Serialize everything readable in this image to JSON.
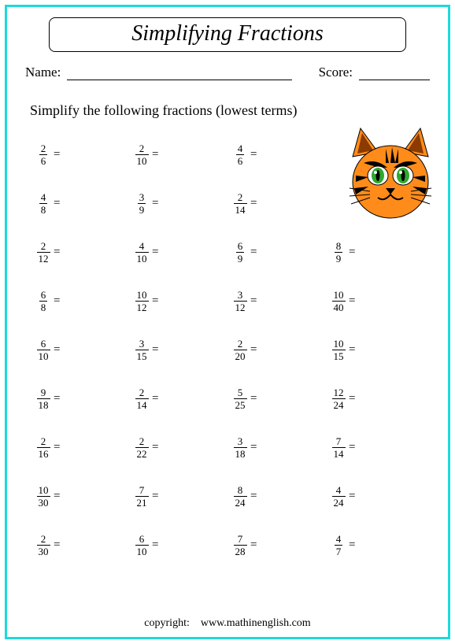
{
  "title": "Simplifying Fractions",
  "labels": {
    "name": "Name:",
    "score": "Score:"
  },
  "instructions": "Simplify the following fractions (lowest terms)",
  "equals": "=",
  "copyright_label": "copyright:",
  "copyright_site": "www.mathinenglish.com",
  "problems": [
    [
      [
        2,
        6
      ],
      [
        2,
        10
      ],
      [
        4,
        6
      ],
      null
    ],
    [
      [
        4,
        8
      ],
      [
        3,
        9
      ],
      [
        2,
        14
      ],
      null
    ],
    [
      [
        2,
        12
      ],
      [
        4,
        10
      ],
      [
        6,
        9
      ],
      [
        8,
        9
      ]
    ],
    [
      [
        6,
        8
      ],
      [
        10,
        12
      ],
      [
        3,
        12
      ],
      [
        10,
        40
      ]
    ],
    [
      [
        6,
        10
      ],
      [
        3,
        15
      ],
      [
        2,
        20
      ],
      [
        10,
        15
      ]
    ],
    [
      [
        9,
        18
      ],
      [
        2,
        14
      ],
      [
        5,
        25
      ],
      [
        12,
        24
      ]
    ],
    [
      [
        2,
        16
      ],
      [
        2,
        22
      ],
      [
        3,
        18
      ],
      [
        7,
        14
      ]
    ],
    [
      [
        10,
        30
      ],
      [
        7,
        21
      ],
      [
        8,
        24
      ],
      [
        4,
        24
      ]
    ],
    [
      [
        2,
        30
      ],
      [
        6,
        10
      ],
      [
        7,
        28
      ],
      [
        4,
        7
      ]
    ]
  ],
  "colors": {
    "outer_border": "#1fd9d9",
    "text": "#000000",
    "cat_body": "#ff8c1a",
    "cat_stripes": "#000000",
    "cat_eye_outer": "#ffffff",
    "cat_eye_iris": "#2fa82f",
    "cat_eye_pupil": "#000000",
    "cat_nose": "#000000",
    "cat_inner_mouth": "#8b3a00"
  }
}
